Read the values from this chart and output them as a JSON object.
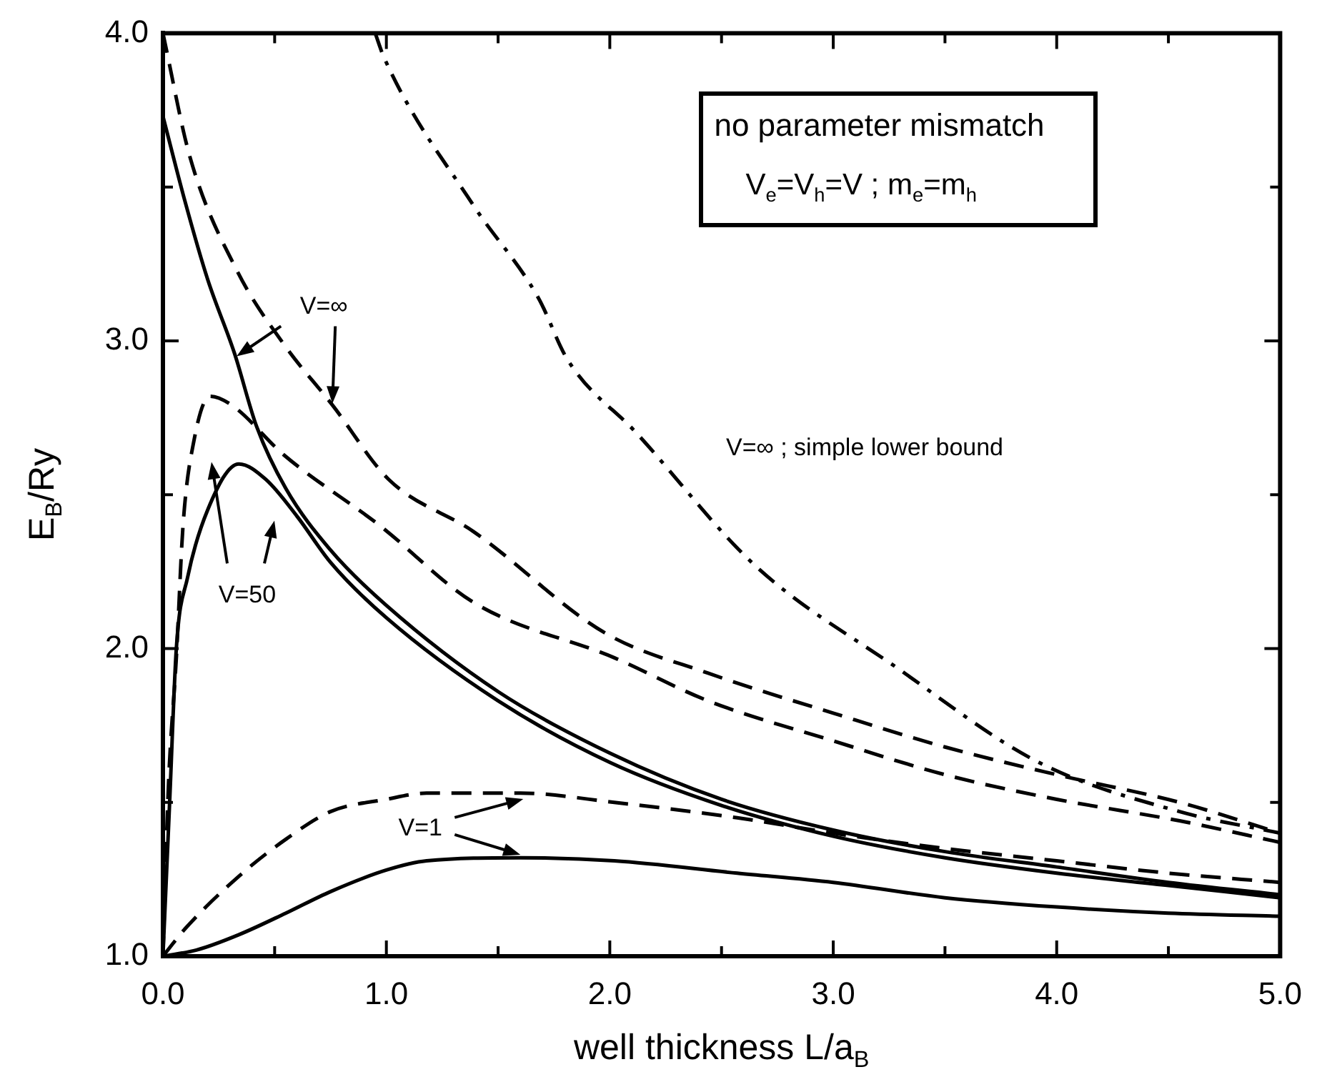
{
  "chart_data": {
    "type": "line",
    "xlabel": "well thickness L/a$_{B}$",
    "ylabel": "E$_{B}$/Ry",
    "xlim": [
      0,
      5
    ],
    "ylim": [
      1,
      4
    ],
    "xticks": [
      {
        "value": 0,
        "label": "0.0"
      },
      {
        "value": 0.5,
        "label": null
      },
      {
        "value": 1,
        "label": "1.0"
      },
      {
        "value": 1.5,
        "label": null
      },
      {
        "value": 2,
        "label": "2.0"
      },
      {
        "value": 2.5,
        "label": null
      },
      {
        "value": 3,
        "label": "3.0"
      },
      {
        "value": 3.5,
        "label": null
      },
      {
        "value": 4,
        "label": "4.0"
      },
      {
        "value": 4.5,
        "label": null
      },
      {
        "value": 5,
        "label": "5.0"
      }
    ],
    "yticks": [
      {
        "value": 1,
        "label": "1.0"
      },
      {
        "value": 1.5,
        "label": null
      },
      {
        "value": 2,
        "label": "2.0"
      },
      {
        "value": 2.5,
        "label": null
      },
      {
        "value": 3,
        "label": "3.0"
      },
      {
        "value": 3.5,
        "label": null
      },
      {
        "value": 4,
        "label": "4.0"
      }
    ],
    "grid": false,
    "legend": false,
    "marker": "none",
    "series": [
      {
        "color": "#000000",
        "line_style": "solid",
        "x": [
          0,
          0.1,
          0.2,
          0.32,
          0.42,
          0.55,
          0.75,
          1.0,
          1.5,
          2.0,
          2.5,
          3.0,
          3.5,
          4.0,
          4.5,
          5.0
        ],
        "values": [
          3.73,
          3.45,
          3.2,
          2.96,
          2.72,
          2.52,
          2.32,
          2.14,
          1.86,
          1.66,
          1.51,
          1.41,
          1.34,
          1.29,
          1.24,
          1.2
        ]
      },
      {
        "color": "#000000",
        "line_style": "dashed",
        "x": [
          0,
          0.12,
          0.33,
          0.54,
          0.76,
          1.01,
          1.39,
          1.98,
          2.44,
          3.0,
          3.5,
          4.0,
          4.55,
          5.0
        ],
        "values": [
          4.0,
          3.6,
          3.23,
          2.99,
          2.79,
          2.55,
          2.38,
          2.05,
          1.92,
          1.79,
          1.68,
          1.59,
          1.5,
          1.4
        ]
      },
      {
        "color": "#000000",
        "line_style": "solid",
        "x": [
          0,
          0.03,
          0.06,
          0.11,
          0.2,
          0.34,
          0.46,
          0.6,
          0.75,
          1.0,
          1.5,
          2.0,
          2.5,
          3.0,
          3.5,
          4.0,
          4.5,
          5.0
        ],
        "values": [
          1.0,
          1.5,
          2.0,
          2.23,
          2.45,
          2.6,
          2.55,
          2.43,
          2.28,
          2.1,
          1.83,
          1.63,
          1.49,
          1.39,
          1.32,
          1.27,
          1.23,
          1.19
        ]
      },
      {
        "color": "#000000",
        "line_style": "dashed",
        "x": [
          0,
          0.025,
          0.06,
          0.09,
          0.14,
          0.21,
          0.31,
          0.54,
          0.97,
          1.39,
          2.02,
          2.44,
          3.0,
          3.5,
          4.0,
          4.55,
          5.0
        ],
        "values": [
          1.0,
          1.56,
          1.97,
          2.4,
          2.68,
          2.82,
          2.79,
          2.63,
          2.4,
          2.15,
          1.97,
          1.83,
          1.7,
          1.59,
          1.51,
          1.44,
          1.37
        ]
      },
      {
        "color": "#000000",
        "line_style": "solid",
        "x": [
          0,
          0.15,
          0.34,
          0.55,
          0.75,
          1.0,
          1.18,
          1.6,
          2.02,
          2.57,
          3.0,
          3.5,
          4.0,
          4.5,
          5.0
        ],
        "values": [
          1.0,
          1.02,
          1.07,
          1.14,
          1.21,
          1.28,
          1.31,
          1.32,
          1.31,
          1.27,
          1.24,
          1.19,
          1.16,
          1.14,
          1.13
        ]
      },
      {
        "color": "#000000",
        "line_style": "dashed",
        "x": [
          0,
          0.1,
          0.34,
          0.55,
          0.75,
          1.0,
          1.18,
          1.6,
          2.02,
          2.57,
          3.0,
          3.5,
          4.0,
          4.5,
          5.0
        ],
        "values": [
          1.0,
          1.09,
          1.26,
          1.38,
          1.47,
          1.51,
          1.53,
          1.53,
          1.5,
          1.45,
          1.4,
          1.35,
          1.31,
          1.27,
          1.24
        ]
      },
      {
        "color": "#000000",
        "line_style": "dashdot",
        "x": [
          0.95,
          0.99,
          1.39,
          1.68,
          1.81,
          2.12,
          2.65,
          3.28,
          3.92,
          4.55,
          5.0
        ],
        "values": [
          4.0,
          3.92,
          3.44,
          3.14,
          2.94,
          2.7,
          2.27,
          1.94,
          1.63,
          1.47,
          1.4
        ]
      }
    ],
    "annotations": [
      {
        "text": "V=∞",
        "x": 0.33,
        "y": 2.95
      },
      "V=50",
      {
        "text": "V=1",
        "x": 1.6,
        "y": 1.33
      },
      "V=∞ ; simple lower bound",
      "no parameter mismatch",
      "V$_{e}$=V$_{h}$=V ; m$_{e}$=m$_{h}$"
    ]
  }
}
